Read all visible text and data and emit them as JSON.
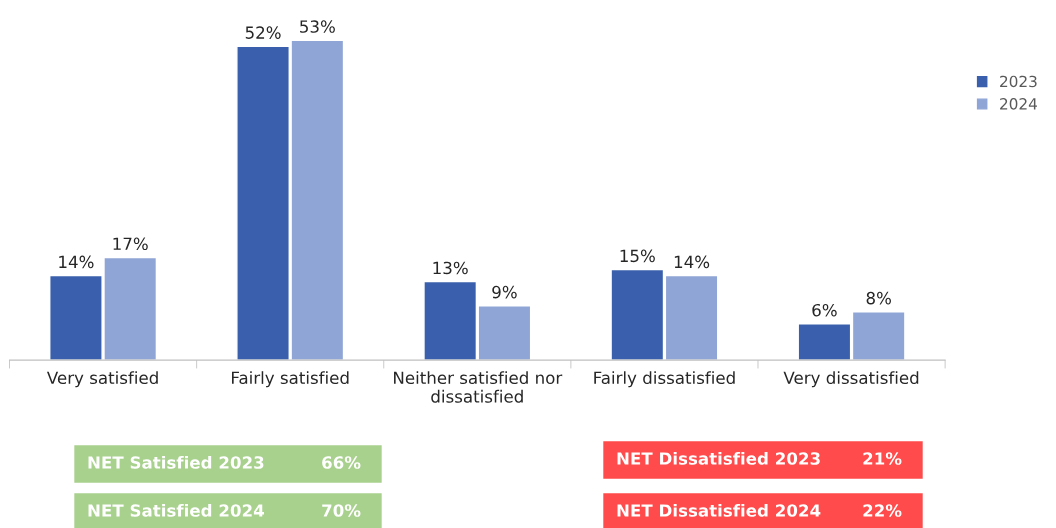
{
  "chart_data": {
    "type": "bar",
    "categories": [
      "Very satisfied",
      "Fairly satisfied",
      "Neither satisfied nor\ndissatisfied",
      "Fairly dissatisfied",
      "Very dissatisfied"
    ],
    "series": [
      {
        "name": "2023",
        "color": "#3a60ad",
        "values": [
          14,
          52,
          13,
          15,
          6
        ],
        "value_labels": [
          "14%",
          "52%",
          "13%",
          "15%",
          "6%"
        ]
      },
      {
        "name": "2024",
        "color": "#8fa5d6",
        "values": [
          17,
          53,
          9,
          14,
          8
        ],
        "value_labels": [
          "17%",
          "53%",
          "9%",
          "14%",
          "8%"
        ]
      }
    ],
    "tick_labels": "x",
    "legend": "right",
    "annotations": [
      "NET Satisfied 2023 66%",
      "NET Satisfied 2024 70%",
      "NET Dissatisfied 2023 21%",
      "NET Dissatisfied 2024 22%"
    ]
  }
}
